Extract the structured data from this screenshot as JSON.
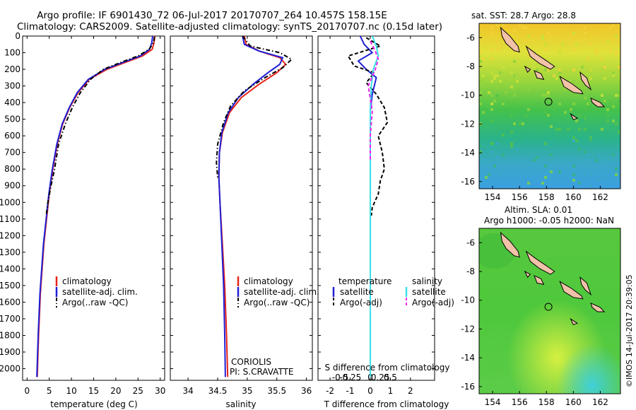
{
  "header": {
    "line1": "Argo profile: IF 6901430_72 06-Jul-2017 20170707_264 10.457S 158.15E",
    "line2": "Climatology: CARS2009. Satellite-adjusted climatology: synTS_20170707.nc (0.15d later)"
  },
  "colors": {
    "climatology": "#e8231a",
    "satellite": "#1f1fd6",
    "argo": "#000000",
    "sal_satellite": "#38e0e8",
    "sal_argo": "#ee22ee"
  },
  "chart_data": [
    {
      "type": "line",
      "id": "temperature",
      "xlabel": "temperature (deg C)",
      "ylabel": "",
      "xlim": [
        -1,
        31
      ],
      "ylim": [
        2070,
        0
      ],
      "xticks": [
        0,
        5,
        10,
        15,
        20,
        25,
        30
      ],
      "yticks": [
        0,
        100,
        200,
        300,
        400,
        500,
        600,
        700,
        800,
        900,
        1000,
        1100,
        1200,
        1300,
        1400,
        1500,
        1600,
        1700,
        1800,
        1900,
        2000
      ],
      "legend": [
        "climatology",
        "satellite-adj. clim.",
        "Argo(..raw -QC)"
      ],
      "series": [
        {
          "name": "climatology",
          "style": "solid",
          "color": "#e8231a",
          "x": [
            28.8,
            28.6,
            28.2,
            26.0,
            22.0,
            18.0,
            14.0,
            11.5,
            9.6,
            8.0,
            6.8,
            5.8,
            5.0,
            3.8,
            3.0,
            2.6,
            2.3
          ],
          "y": [
            0,
            40,
            80,
            120,
            160,
            200,
            260,
            340,
            430,
            530,
            650,
            800,
            950,
            1250,
            1550,
            1800,
            2050
          ]
        },
        {
          "name": "satellite-adj. clim.",
          "style": "solid",
          "color": "#1f1fd6",
          "x": [
            28.3,
            28.1,
            27.6,
            25.5,
            21.5,
            17.5,
            13.8,
            11.3,
            9.5,
            7.9,
            6.7,
            5.7,
            4.9,
            3.7,
            2.9,
            2.5,
            2.2
          ],
          "y": [
            0,
            40,
            80,
            120,
            160,
            200,
            260,
            340,
            430,
            530,
            650,
            800,
            950,
            1250,
            1550,
            1800,
            2050
          ]
        },
        {
          "name": "Argo(..raw -QC)",
          "style": "dashdot",
          "color": "#000000",
          "x": [
            28.7,
            28.5,
            27.5,
            25.0,
            21.0,
            17.2,
            14.3,
            12.0,
            10.2,
            8.6,
            7.1,
            6.2,
            5.4,
            4.7,
            4.3
          ],
          "y": [
            5,
            40,
            80,
            120,
            160,
            200,
            260,
            340,
            430,
            530,
            650,
            800,
            900,
            1000,
            1080
          ]
        }
      ]
    },
    {
      "type": "line",
      "id": "salinity",
      "xlabel": "salinity",
      "xlim": [
        33.7,
        36.1
      ],
      "ylim": [
        2070,
        0
      ],
      "xticks": [
        34,
        34.5,
        35,
        35.5,
        36
      ],
      "legend": [
        "climatology",
        "satellite-adj. clim.",
        "Argo(..raw -QC)"
      ],
      "annotation": [
        "CORIOLIS",
        "PI: S.CRAVATTE"
      ],
      "series": [
        {
          "name": "climatology",
          "style": "solid",
          "color": "#e8231a",
          "x": [
            34.95,
            34.98,
            35.2,
            35.55,
            35.65,
            35.5,
            35.2,
            34.9,
            34.7,
            34.58,
            34.53,
            34.52,
            34.54,
            34.58,
            34.62,
            34.65,
            34.67
          ],
          "y": [
            0,
            50,
            90,
            130,
            170,
            220,
            290,
            370,
            460,
            580,
            700,
            850,
            1000,
            1250,
            1500,
            1800,
            2050
          ]
        },
        {
          "name": "satellite-adj. clim.",
          "style": "solid",
          "color": "#1f1fd6",
          "x": [
            34.92,
            34.95,
            35.2,
            35.6,
            35.55,
            35.35,
            35.1,
            34.85,
            34.68,
            34.57,
            34.53,
            34.52,
            34.54,
            34.57,
            34.6,
            34.62,
            34.63
          ],
          "y": [
            0,
            50,
            90,
            130,
            170,
            220,
            290,
            370,
            460,
            580,
            700,
            850,
            1000,
            1250,
            1500,
            1800,
            2050
          ]
        },
        {
          "name": "Argo(..raw -QC)",
          "style": "dashdot",
          "color": "#000000",
          "x": [
            34.92,
            35.05,
            35.55,
            35.75,
            35.6,
            35.3,
            34.95,
            34.72,
            34.6,
            34.5,
            34.48,
            34.5
          ],
          "y": [
            0,
            60,
            100,
            140,
            190,
            250,
            330,
            420,
            520,
            650,
            760,
            850
          ]
        }
      ]
    },
    {
      "type": "line",
      "id": "difference",
      "xlabel": "T difference from climatology",
      "title": "S difference from climatology",
      "xlim": [
        -2.6,
        3.2
      ],
      "ylim": [
        2070,
        0
      ],
      "xticks": [
        -2,
        -1,
        0,
        1,
        2
      ],
      "s_xtick_labels": [
        "-0.5",
        "-0.25",
        "0",
        "0.25",
        "0.5"
      ],
      "legend_temperature": {
        "title": "temperature",
        "items": [
          "satellite",
          "Argo(-adj)"
        ]
      },
      "legend_salinity": {
        "title": "salinity",
        "items": [
          "satellite",
          "Argo(-adj)"
        ]
      },
      "series": [
        {
          "name": "temperature satellite",
          "style": "solid",
          "color": "#1f1fd6",
          "x": [
            -0.5,
            -0.3,
            0.1,
            -0.6,
            -0.2,
            0.3,
            0.1,
            0.0,
            0.0,
            0.0,
            0.0
          ],
          "y": [
            0,
            50,
            100,
            150,
            200,
            250,
            350,
            450,
            700,
            1200,
            2050
          ]
        },
        {
          "name": "temperature Argo(-adj)",
          "style": "dashed",
          "color": "#000000",
          "x": [
            -0.2,
            0.5,
            -1.1,
            -0.8,
            0.2,
            -0.2,
            0.3,
            0.7,
            0.85,
            0.4,
            0.6,
            0.7,
            0.5,
            0.4,
            0.1,
            0.05
          ],
          "y": [
            10,
            60,
            120,
            180,
            220,
            280,
            350,
            430,
            520,
            600,
            700,
            800,
            870,
            950,
            1030,
            1080
          ]
        },
        {
          "name": "salinity satellite",
          "style": "solid",
          "color": "#38e0e8",
          "x": [
            0.1,
            0.3,
            0.4,
            0.15,
            0.05,
            0.0,
            0.0,
            0.0,
            0.0,
            0.0
          ],
          "y": [
            0,
            60,
            120,
            200,
            300,
            450,
            600,
            900,
            1400,
            2050
          ]
        },
        {
          "name": "salinity Argo(-adj)",
          "style": "dashed",
          "color": "#ee22ee",
          "x": [
            0.0,
            0.25,
            0.4,
            0.25,
            -0.1,
            0.1,
            0.0,
            0.0
          ],
          "y": [
            30,
            90,
            140,
            200,
            300,
            450,
            600,
            750
          ]
        }
      ]
    },
    {
      "type": "heatmap",
      "id": "sst_map",
      "title": "sat. SST: 28.7 Argo: 28.8",
      "xlim": [
        153,
        163.5
      ],
      "ylim": [
        -16.5,
        -5
      ],
      "xticks": [
        154,
        156,
        158,
        160,
        162
      ],
      "yticks": [
        -6,
        -8,
        -10,
        -12,
        -14,
        -16
      ],
      "argo_position": [
        158.15,
        -10.457
      ]
    },
    {
      "type": "heatmap",
      "id": "sla_map",
      "title_line1": "Altim. SLA: 0.01",
      "title_line2": "Argo h1000: -0.05 h2000: NaN",
      "xlim": [
        153,
        163.5
      ],
      "ylim": [
        -16.5,
        -5
      ],
      "xticks": [
        154,
        156,
        158,
        160,
        162
      ],
      "yticks": [
        -6,
        -8,
        -10,
        -12,
        -14,
        -16
      ],
      "argo_position": [
        158.15,
        -10.457
      ]
    }
  ],
  "footer": {
    "stamp": "©IMOS 14-Jul-2017 20:39:05"
  }
}
